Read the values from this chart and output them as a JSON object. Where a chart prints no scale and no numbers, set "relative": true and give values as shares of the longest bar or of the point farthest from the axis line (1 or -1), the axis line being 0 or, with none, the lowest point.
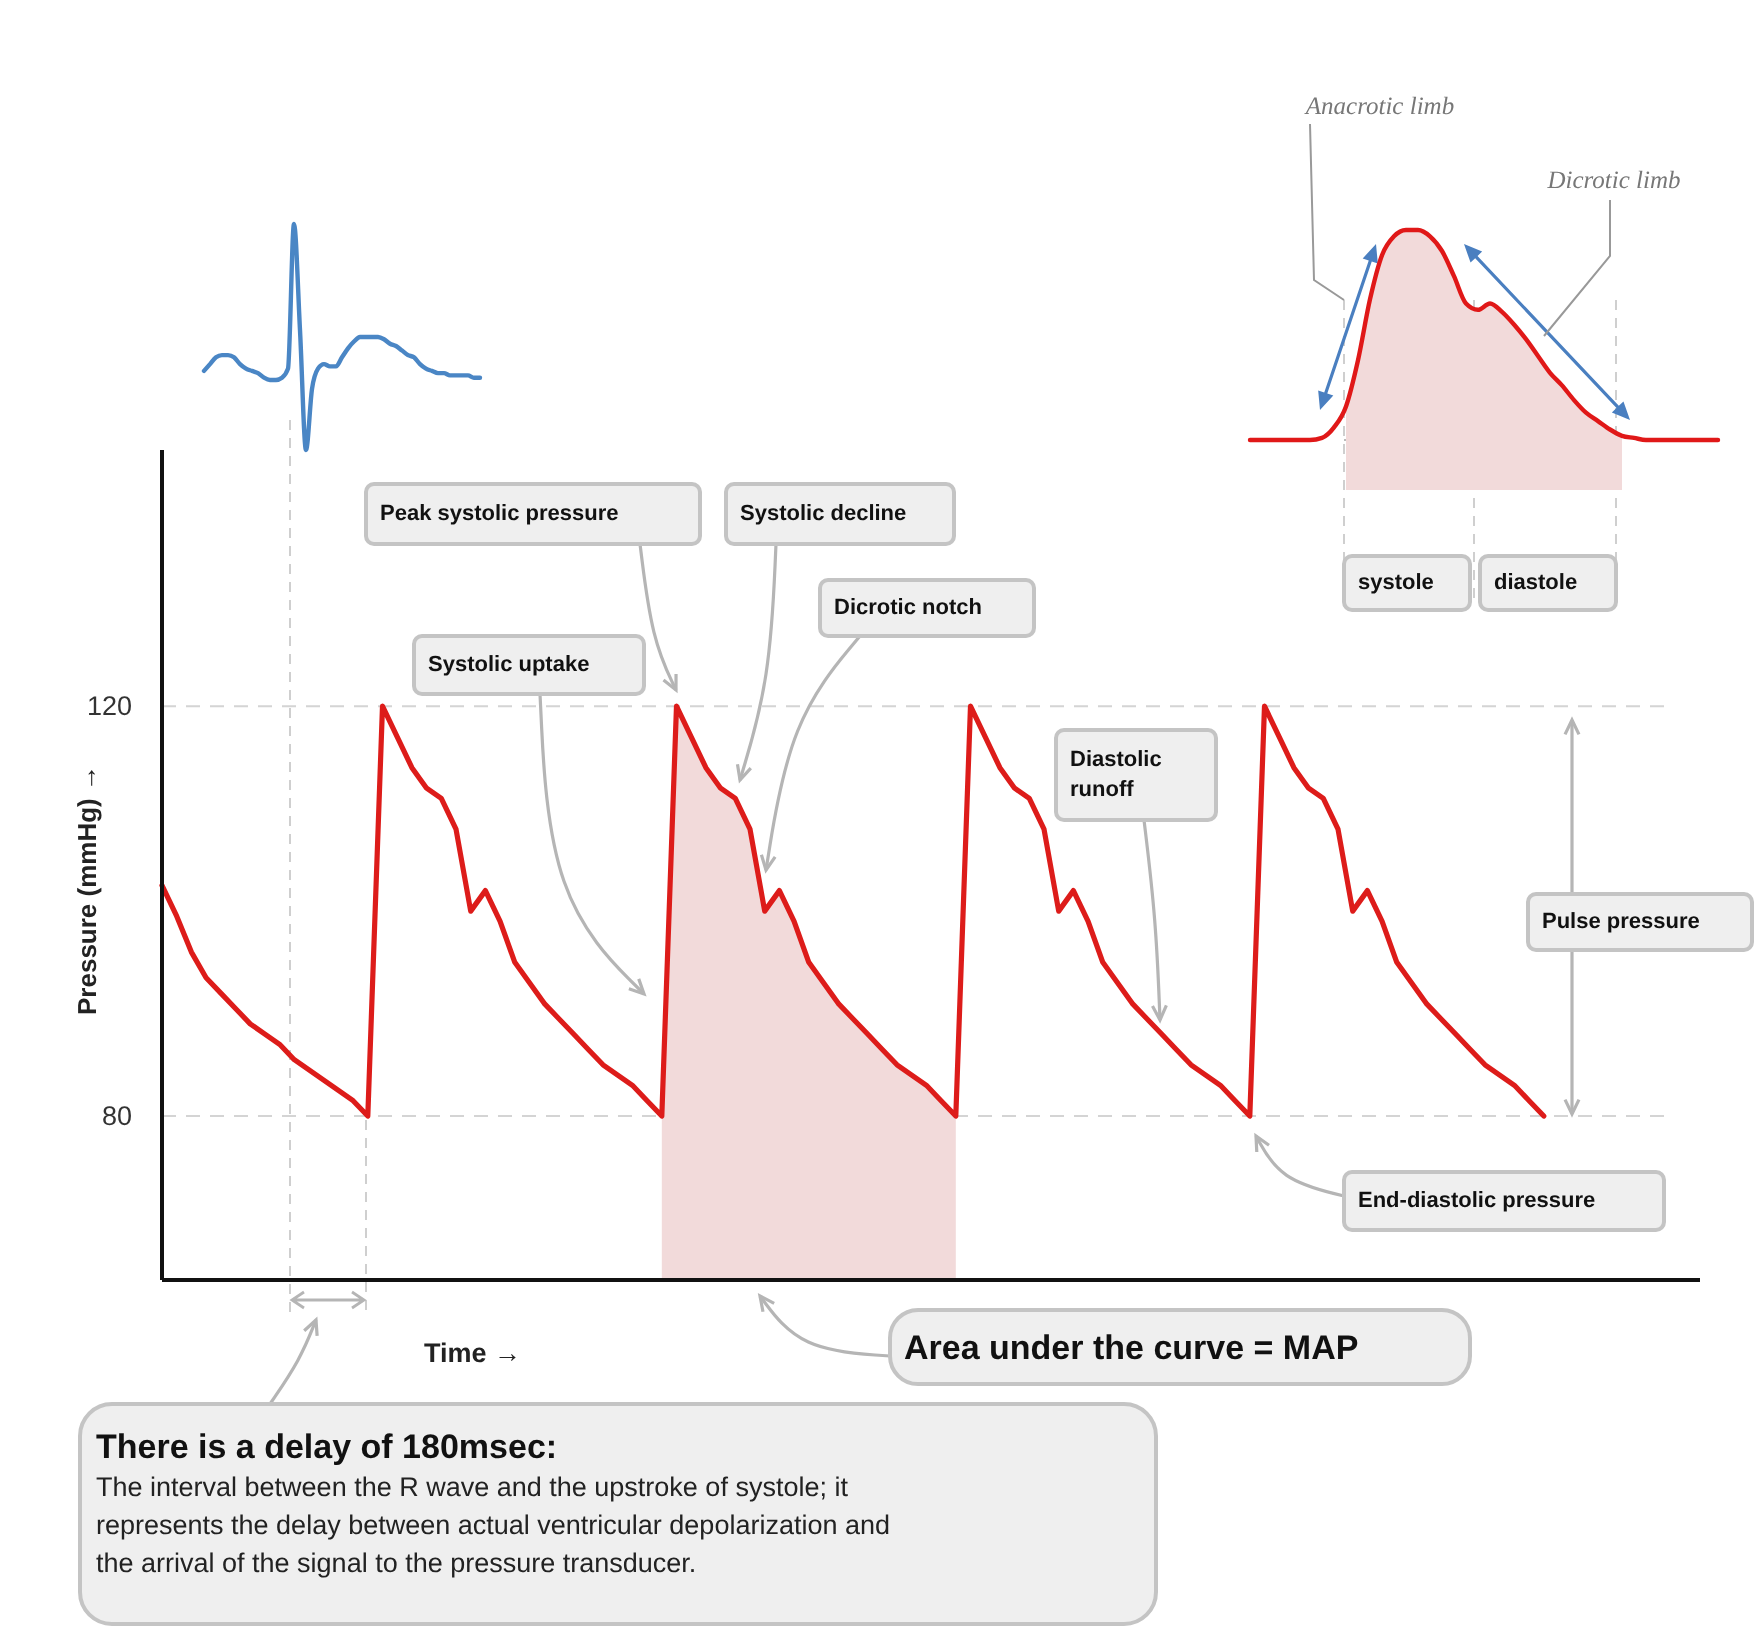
{
  "chart_data": [
    {
      "type": "line",
      "relative": true,
      "categories": [
        null,
        null,
        null,
        null,
        null,
        null,
        null,
        null,
        null,
        null,
        null,
        null,
        null,
        null,
        null,
        null,
        null,
        null,
        null,
        null,
        null,
        null,
        null,
        null,
        null,
        null,
        null,
        null,
        null,
        null,
        null,
        null,
        null,
        null,
        null,
        null,
        null,
        null,
        null,
        null,
        null,
        null,
        null,
        null,
        null,
        null,
        null
      ],
      "series": [
        {
          "type": "line",
          "color": "#4a86c5",
          "values": [
            0.35,
            0.38,
            0.41,
            0.42,
            0.42,
            0.41,
            0.38,
            0.36,
            0.35,
            0.34,
            0.32,
            0.31,
            0.31,
            0.32,
            0.36,
            1,
            0.53,
            0,
            0.27,
            0.36,
            0.38,
            0.37,
            0.37,
            0.41,
            0.45,
            0.48,
            0.5,
            0.5,
            0.5,
            0.5,
            0.49,
            0.47,
            0.46,
            0.44,
            0.42,
            0.41,
            0.38,
            0.36,
            0.35,
            0.34,
            0.34,
            0.33,
            0.33,
            0.33,
            0.33,
            0.32,
            0.32
          ]
        }
      ]
    },
    {
      "type": "line",
      "relative": true,
      "categories": [
        null,
        null,
        null,
        null,
        null,
        null,
        null,
        null,
        null,
        null,
        null,
        null,
        null,
        null,
        null,
        null,
        null,
        null,
        null,
        null,
        null,
        null,
        null,
        null,
        null,
        null,
        null,
        null,
        null,
        null,
        null,
        null,
        null,
        null,
        null,
        null,
        null,
        null,
        null,
        null
      ],
      "series": [
        {
          "type": "area",
          "color": "#f2dada",
          "values": [
            null,
            null,
            null,
            null,
            null,
            null,
            null,
            null,
            0.16,
            0.38,
            0.67,
            0.88,
            0.97,
            1,
            1,
            0.97,
            0.9,
            0.78,
            0.65,
            0.62,
            0.65,
            0.61,
            0.55,
            0.48,
            0.4,
            0.32,
            0.26,
            0.19,
            0.13,
            0.09,
            0.05,
            0.02,
            null,
            null,
            null,
            null,
            null,
            null,
            null,
            null
          ]
        },
        {
          "type": "line",
          "color": "#e01818",
          "values": [
            0,
            0,
            0,
            0,
            0,
            0,
            0.01,
            0.06,
            0.16,
            0.38,
            0.67,
            0.88,
            0.97,
            1,
            1,
            0.97,
            0.9,
            0.78,
            0.65,
            0.62,
            0.65,
            0.61,
            0.55,
            0.48,
            0.4,
            0.32,
            0.26,
            0.19,
            0.13,
            0.09,
            0.05,
            0.02,
            0.01,
            0,
            0,
            0,
            0,
            0,
            0,
            0
          ]
        }
      ],
      "annotations": [
        "Anacrotic limb",
        "Dicrotic limb",
        "systole",
        "diastole"
      ]
    },
    {
      "type": "line",
      "xlabel": "Time →",
      "ylabel": "Pressure (mmHg) →",
      "categories": [
        null,
        null,
        null,
        null,
        null,
        null,
        null,
        null,
        null,
        null,
        null,
        null,
        null,
        null,
        null,
        null,
        null,
        null,
        null,
        null,
        null,
        null,
        null,
        null,
        null,
        null,
        null,
        null,
        null,
        null,
        null,
        null,
        null,
        null,
        null,
        null,
        null,
        null,
        null,
        null,
        null,
        null,
        null,
        null,
        null,
        null,
        null,
        null,
        null,
        null,
        null,
        null,
        null,
        null,
        null,
        null,
        null,
        null,
        null,
        null,
        null,
        null,
        null,
        null,
        null,
        null,
        null,
        null,
        null,
        null,
        null,
        null,
        null,
        null,
        null,
        null,
        null,
        null,
        null,
        null,
        null,
        null,
        null,
        null,
        null,
        null,
        null,
        null,
        null,
        null,
        null,
        null,
        null,
        null,
        null,
        null,
        null,
        null,
        null,
        null,
        null,
        null,
        null,
        null,
        null
      ],
      "series": [
        {
          "type": "area",
          "color": "#f2dada",
          "values": [
            null,
            null,
            null,
            null,
            null,
            null,
            null,
            null,
            null,
            null,
            null,
            null,
            null,
            null,
            null,
            null,
            null,
            null,
            null,
            null,
            null,
            null,
            null,
            null,
            null,
            null,
            null,
            null,
            null,
            null,
            null,
            null,
            null,
            null,
            80,
            120,
            117,
            114,
            112,
            111,
            108,
            100,
            102,
            99,
            95,
            93,
            91,
            89.5,
            88,
            86.5,
            85,
            84,
            83,
            81.5,
            80,
            null,
            null,
            null,
            null,
            null,
            null,
            null,
            null,
            null,
            null,
            null,
            null,
            null,
            null,
            null,
            null,
            null,
            null,
            null,
            null,
            null,
            null,
            null,
            null,
            null,
            null,
            null,
            null,
            null,
            null,
            null,
            null,
            null,
            null,
            null,
            null,
            null,
            null,
            null,
            null,
            null,
            null,
            null,
            null,
            null,
            null,
            null,
            null,
            null,
            null
          ]
        },
        {
          "type": "line",
          "color": "#dd1c1a",
          "values": [
            102.5,
            99.5,
            96,
            93.5,
            92,
            90.5,
            89,
            88,
            87,
            85.5,
            84.5,
            83.5,
            82.5,
            81.5,
            80,
            120,
            117,
            114,
            112,
            111,
            108,
            100,
            102,
            99,
            95,
            93,
            91,
            89.5,
            88,
            86.5,
            85,
            84,
            83,
            81.5,
            80,
            120,
            117,
            114,
            112,
            111,
            108,
            100,
            102,
            99,
            95,
            93,
            91,
            89.5,
            88,
            86.5,
            85,
            84,
            83,
            81.5,
            80,
            120,
            117,
            114,
            112,
            111,
            108,
            100,
            102,
            99,
            95,
            93,
            91,
            89.5,
            88,
            86.5,
            85,
            84,
            83,
            81.5,
            80,
            120,
            117,
            114,
            112,
            111,
            108,
            100,
            102,
            99,
            95,
            93,
            91,
            89.5,
            88,
            86.5,
            85,
            84,
            83,
            81.5,
            80,
            null,
            null,
            null,
            null,
            null,
            null,
            null,
            null,
            null,
            null
          ]
        }
      ],
      "ylim": [
        64,
        145
      ],
      "yticks": [
        80,
        120
      ],
      "grid": "y",
      "annotations": [
        "Peak systolic pressure",
        "Systolic decline",
        "Dicrotic notch",
        "Systolic uptake",
        "Diastolic runoff",
        "Pulse pressure",
        "End-diastolic pressure",
        "Area under the curve = MAP",
        "There is a delay of 180msec:",
        "The interval between the R wave and the upstroke of systole; it represents the delay between actual ventricular depolarization and the arrival of the signal to the pressure transducer."
      ]
    }
  ]
}
